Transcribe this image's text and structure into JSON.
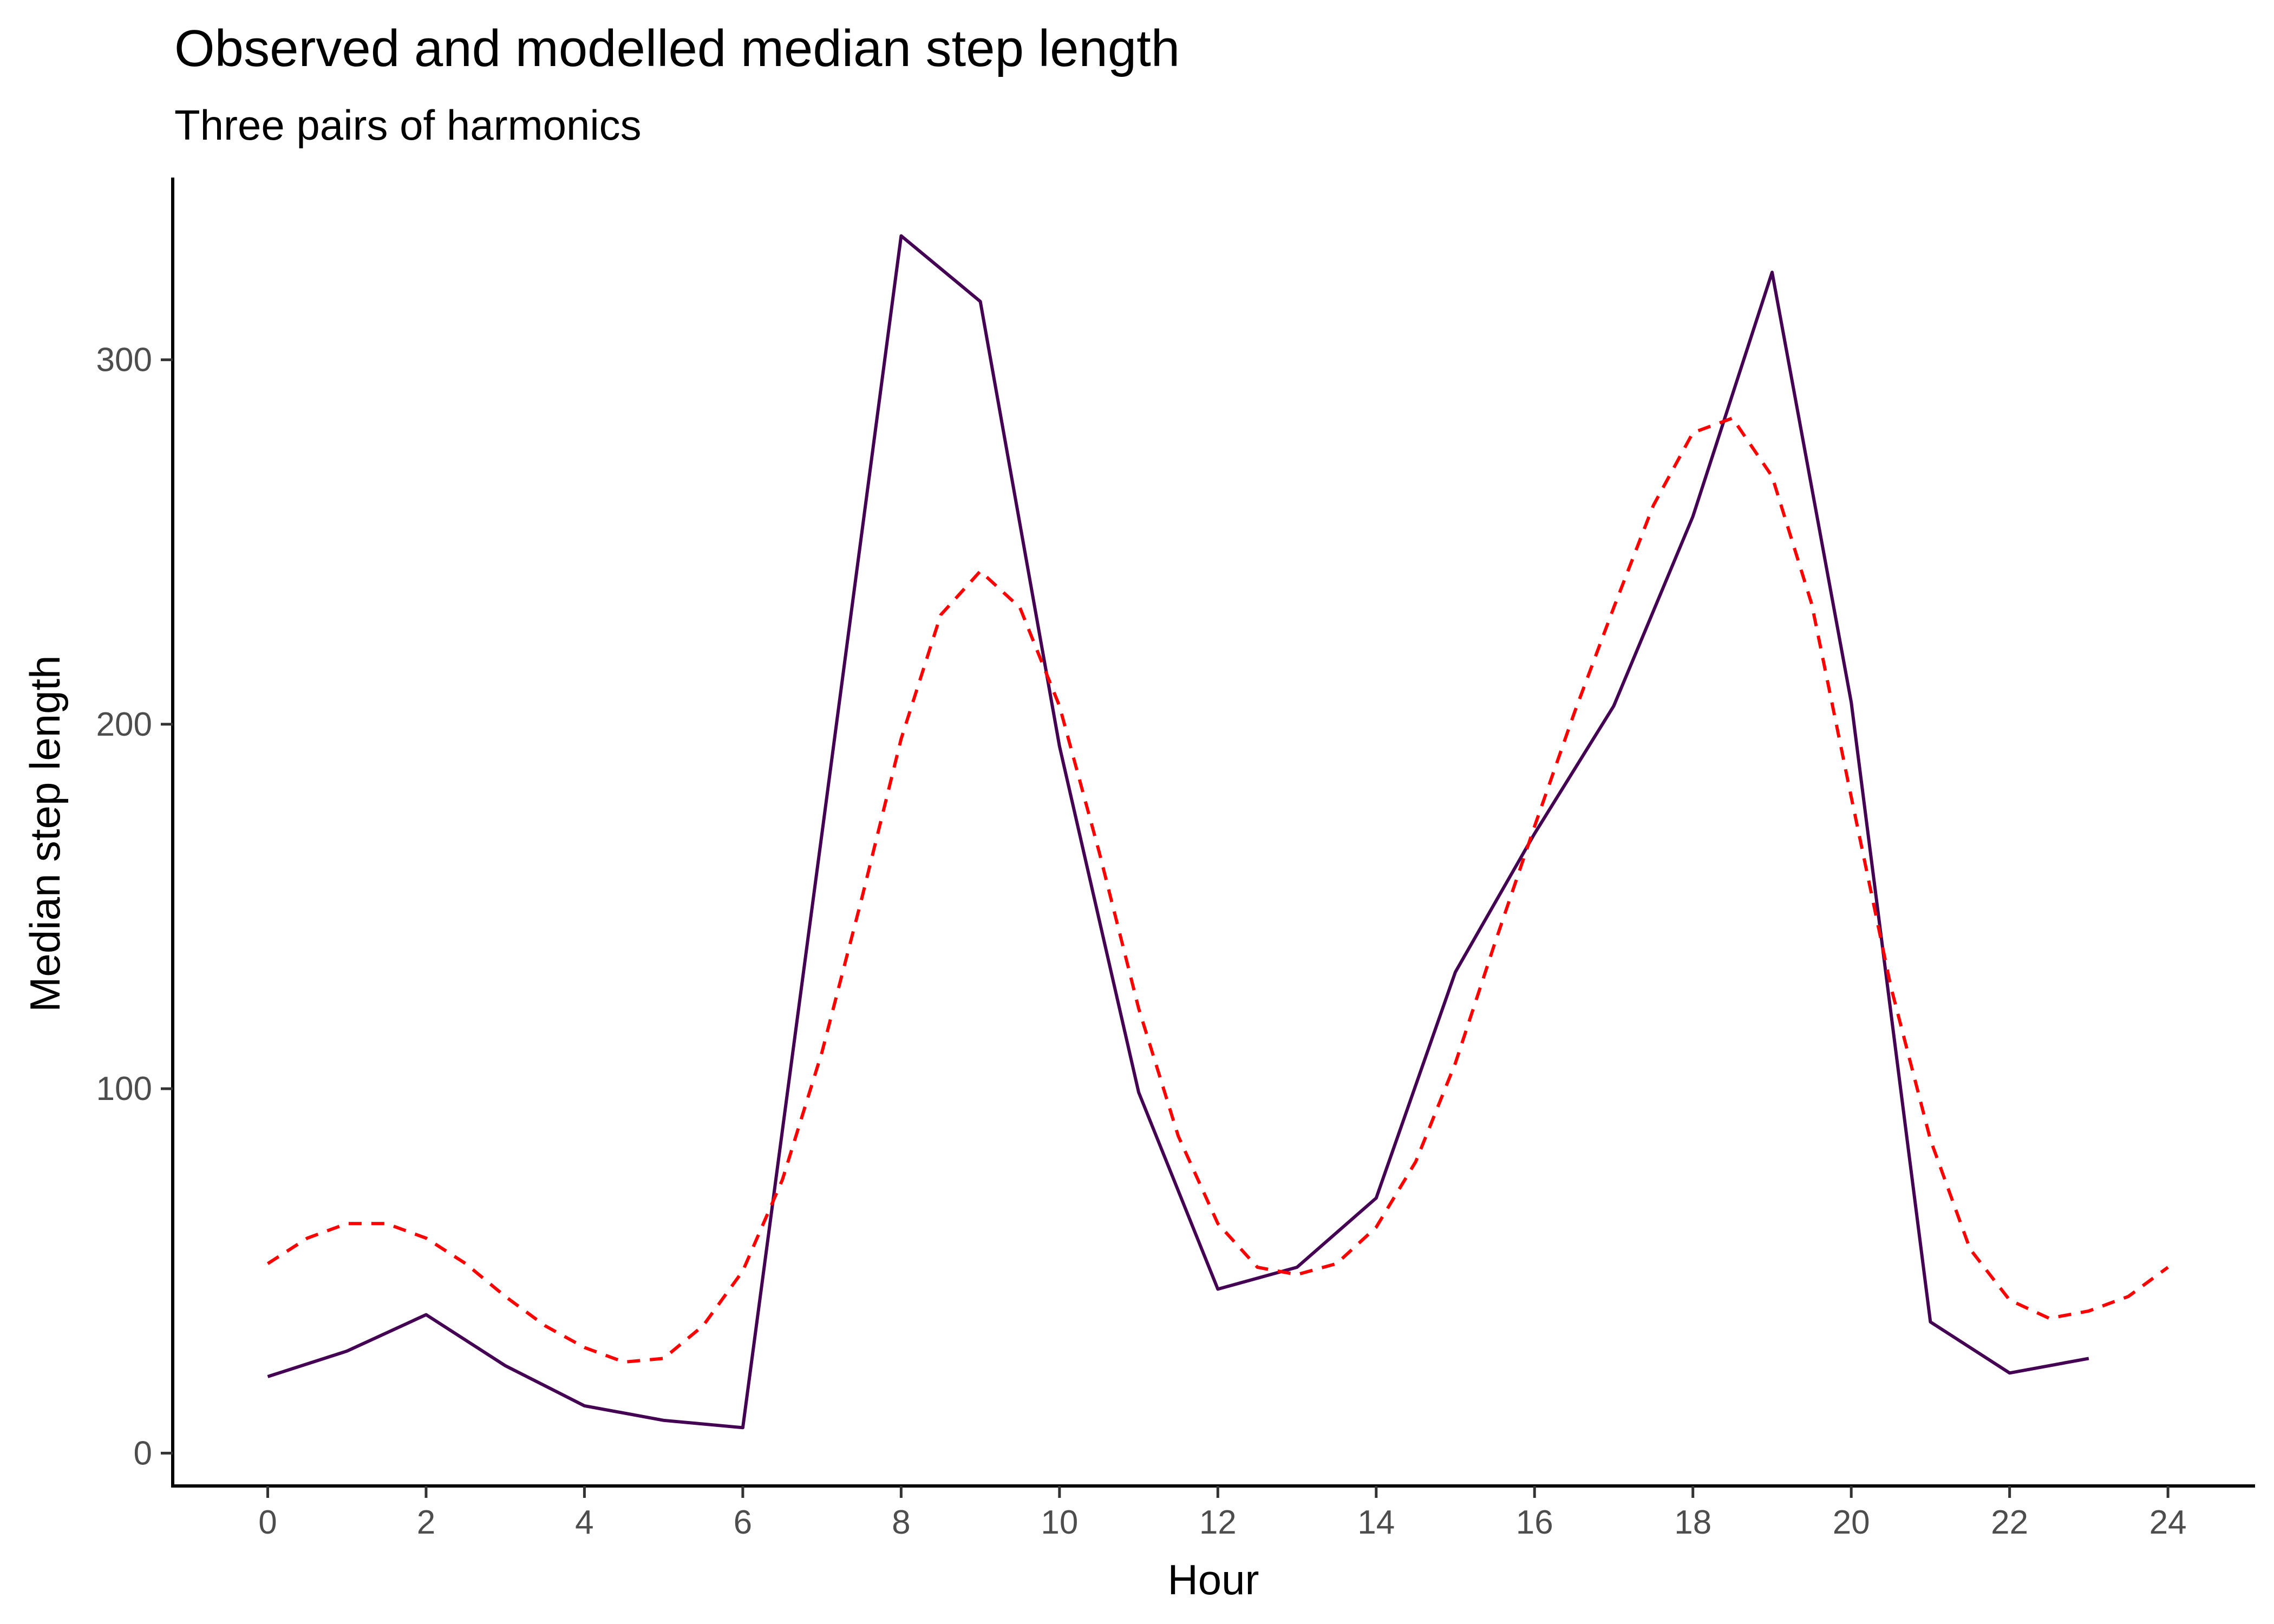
{
  "chart_data": {
    "type": "line",
    "title": "Observed and modelled median step length",
    "subtitle": "Three pairs of harmonics",
    "xlabel": "Hour",
    "ylabel": "Median step length",
    "xlim": [
      -1.2,
      25.1
    ],
    "ylim": [
      -9,
      350
    ],
    "x_ticks": [
      0,
      2,
      4,
      6,
      8,
      10,
      12,
      14,
      16,
      18,
      20,
      22,
      24
    ],
    "y_ticks": [
      0,
      100,
      200,
      300
    ],
    "grid": false,
    "legend": "none",
    "series": [
      {
        "role": "observed",
        "color": "#440154",
        "dash": "solid",
        "x": [
          0,
          1,
          2,
          3,
          4,
          5,
          6,
          7,
          8,
          9,
          10,
          11,
          12,
          13,
          14,
          15,
          16,
          17,
          18,
          19,
          20,
          21,
          22,
          23
        ],
        "y": [
          21,
          28,
          38,
          24,
          13,
          9,
          7,
          170,
          334,
          316,
          194,
          99,
          45,
          51,
          70,
          132,
          170,
          205,
          257,
          324,
          206,
          36,
          22,
          26
        ]
      },
      {
        "role": "modelled",
        "color": "#ff0000",
        "dash": "dashed",
        "x": [
          0,
          0.5,
          1,
          1.5,
          2,
          2.5,
          3,
          3.5,
          4,
          4.5,
          5,
          5.5,
          6,
          6.5,
          7,
          7.5,
          8,
          8.5,
          9,
          9.5,
          10,
          10.5,
          11,
          11.5,
          12,
          12.5,
          13,
          13.5,
          14,
          14.5,
          15,
          15.5,
          16,
          16.5,
          17,
          17.5,
          18,
          18.5,
          19,
          19.5,
          20,
          20.5,
          21,
          21.5,
          22,
          22.5,
          23,
          23.5,
          24
        ],
        "y": [
          52,
          59,
          63,
          63,
          59,
          52,
          43,
          35,
          29,
          25,
          26,
          35,
          50,
          75,
          110,
          152,
          196,
          230,
          242,
          232,
          205,
          165,
          122,
          87,
          63,
          51,
          49,
          52,
          62,
          80,
          107,
          140,
          172,
          203,
          232,
          260,
          280,
          284,
          268,
          233,
          180,
          128,
          86,
          56,
          42,
          37,
          39,
          43,
          51
        ]
      }
    ]
  }
}
